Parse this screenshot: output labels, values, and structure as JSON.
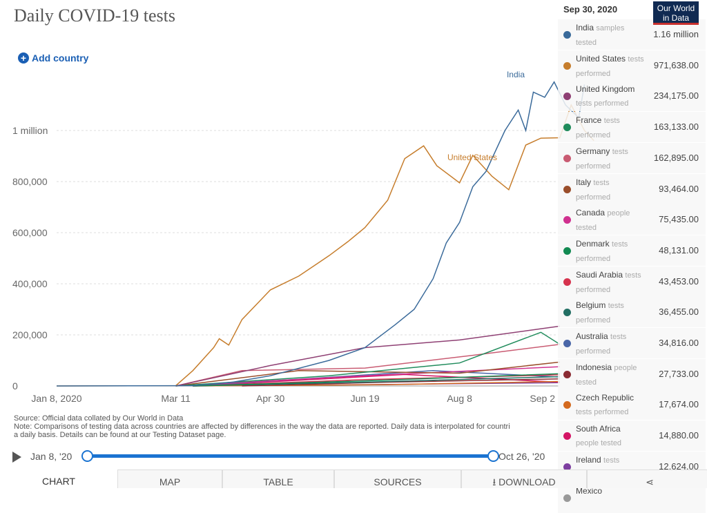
{
  "title": "Daily COVID-19 tests",
  "add_country": "Add country",
  "chart_data": {
    "type": "line",
    "title": "Daily COVID-19 tests",
    "x_ticks": [
      "Jan 8, 2020",
      "Mar 11",
      "Apr 30",
      "Jun 19",
      "Aug 8",
      "Sep 2"
    ],
    "y_ticks": [
      "0",
      "200,000",
      "400,000",
      "600,000",
      "800,000",
      "1 million"
    ],
    "ylim": [
      0,
      1200000
    ],
    "xlim": [
      "2020-01-08",
      "2020-10-26"
    ],
    "grid": "horizontal dashed",
    "series": [
      {
        "name": "India",
        "unit": "samples tested",
        "color": "#3a6a9a",
        "points": [
          [
            "2020-01-08",
            0
          ],
          [
            "2020-03-20",
            1000
          ],
          [
            "2020-04-10",
            15000
          ],
          [
            "2020-04-30",
            40000
          ],
          [
            "2020-05-31",
            100000
          ],
          [
            "2020-06-19",
            150000
          ],
          [
            "2020-07-05",
            240000
          ],
          [
            "2020-07-15",
            300000
          ],
          [
            "2020-07-25",
            420000
          ],
          [
            "2020-08-01",
            560000
          ],
          [
            "2020-08-08",
            640000
          ],
          [
            "2020-08-15",
            780000
          ],
          [
            "2020-08-22",
            840000
          ],
          [
            "2020-09-01",
            1000000
          ],
          [
            "2020-09-08",
            1080000
          ],
          [
            "2020-09-12",
            1000000
          ],
          [
            "2020-09-16",
            1150000
          ],
          [
            "2020-09-22",
            1130000
          ],
          [
            "2020-09-27",
            1190000
          ],
          [
            "2020-10-03",
            1100000
          ],
          [
            "2020-10-10",
            1050000
          ],
          [
            "2020-10-13",
            1180000
          ]
        ]
      },
      {
        "name": "United States",
        "unit": "tests performed",
        "color": "#c67d2c",
        "points": [
          [
            "2020-01-08",
            0
          ],
          [
            "2020-03-11",
            1000
          ],
          [
            "2020-03-20",
            60000
          ],
          [
            "2020-03-31",
            150000
          ],
          [
            "2020-04-03",
            185000
          ],
          [
            "2020-04-08",
            160000
          ],
          [
            "2020-04-15",
            260000
          ],
          [
            "2020-04-30",
            376000
          ],
          [
            "2020-05-15",
            430000
          ],
          [
            "2020-05-31",
            510000
          ],
          [
            "2020-06-10",
            565000
          ],
          [
            "2020-06-19",
            620000
          ],
          [
            "2020-07-01",
            727000
          ],
          [
            "2020-07-10",
            890000
          ],
          [
            "2020-07-20",
            940000
          ],
          [
            "2020-07-27",
            862000
          ],
          [
            "2020-08-08",
            795000
          ],
          [
            "2020-08-15",
            903000
          ],
          [
            "2020-08-25",
            822000
          ],
          [
            "2020-09-03",
            768000
          ],
          [
            "2020-09-12",
            943000
          ],
          [
            "2020-09-20",
            970000
          ],
          [
            "2020-09-30",
            971638
          ],
          [
            "2020-10-06",
            1100000
          ],
          [
            "2020-10-13",
            1000000
          ],
          [
            "2020-10-18",
            960000
          ]
        ]
      },
      {
        "name": "United Kingdom",
        "unit": "tests performed",
        "color": "#8e3f73",
        "points": [
          [
            "2020-03-11",
            0
          ],
          [
            "2020-04-30",
            80000
          ],
          [
            "2020-06-19",
            150000
          ],
          [
            "2020-08-08",
            180000
          ],
          [
            "2020-09-30",
            234175
          ]
        ]
      },
      {
        "name": "France",
        "unit": "tests performed",
        "color": "#1f8b5b",
        "points": [
          [
            "2020-03-11",
            0
          ],
          [
            "2020-05-31",
            40000
          ],
          [
            "2020-08-08",
            90000
          ],
          [
            "2020-09-20",
            210000
          ],
          [
            "2020-09-30",
            163133
          ]
        ]
      },
      {
        "name": "Germany",
        "unit": "tests performed",
        "color": "#c95b72",
        "points": [
          [
            "2020-03-11",
            0
          ],
          [
            "2020-04-15",
            60000
          ],
          [
            "2020-06-19",
            70000
          ],
          [
            "2020-08-15",
            120000
          ],
          [
            "2020-09-30",
            162895
          ]
        ]
      },
      {
        "name": "Italy",
        "unit": "tests performed",
        "color": "#9a4e2b",
        "points": [
          [
            "2020-03-11",
            0
          ],
          [
            "2020-05-15",
            60000
          ],
          [
            "2020-08-08",
            50000
          ],
          [
            "2020-09-30",
            93464
          ]
        ]
      },
      {
        "name": "Canada",
        "unit": "people tested",
        "color": "#d0308f",
        "points": [
          [
            "2020-03-11",
            0
          ],
          [
            "2020-06-19",
            40000
          ],
          [
            "2020-09-30",
            75435
          ]
        ]
      },
      {
        "name": "Denmark",
        "unit": "tests performed",
        "color": "#128a52",
        "points": [
          [
            "2020-03-20",
            0
          ],
          [
            "2020-06-19",
            20000
          ],
          [
            "2020-09-30",
            48131
          ]
        ]
      },
      {
        "name": "Saudi Arabia",
        "unit": "tests performed",
        "color": "#d6334e",
        "points": [
          [
            "2020-03-20",
            0
          ],
          [
            "2020-06-19",
            25000
          ],
          [
            "2020-09-30",
            43453
          ]
        ]
      },
      {
        "name": "Belgium",
        "unit": "tests performed",
        "color": "#236f64",
        "points": [
          [
            "2020-03-20",
            0
          ],
          [
            "2020-06-19",
            15000
          ],
          [
            "2020-09-30",
            36455
          ]
        ]
      },
      {
        "name": "Australia",
        "unit": "tests performed",
        "color": "#4a67a8",
        "points": [
          [
            "2020-03-20",
            0
          ],
          [
            "2020-07-25",
            60000
          ],
          [
            "2020-09-30",
            34816
          ]
        ]
      },
      {
        "name": "Indonesia",
        "unit": "people tested",
        "color": "#8b2c34",
        "points": [
          [
            "2020-04-15",
            0
          ],
          [
            "2020-07-01",
            15000
          ],
          [
            "2020-09-30",
            27733
          ]
        ]
      },
      {
        "name": "Czech Republic",
        "unit": "tests performed",
        "color": "#d46a1f",
        "points": [
          [
            "2020-03-20",
            0
          ],
          [
            "2020-07-01",
            5000
          ],
          [
            "2020-09-30",
            17674
          ]
        ]
      },
      {
        "name": "South Africa",
        "unit": "people tested",
        "color": "#d41565",
        "points": [
          [
            "2020-03-20",
            0
          ],
          [
            "2020-07-10",
            45000
          ],
          [
            "2020-09-30",
            14880
          ]
        ]
      },
      {
        "name": "Ireland",
        "unit": "tests performed",
        "color": "#7d3fa0",
        "points": [
          [
            "2020-03-20",
            0
          ],
          [
            "2020-06-19",
            5000
          ],
          [
            "2020-09-30",
            12624
          ]
        ]
      }
    ],
    "annotations": [
      {
        "text": "India",
        "sub": "samples tested"
      },
      {
        "text": "United States",
        "sub": "tests performed"
      }
    ]
  },
  "legend": {
    "date": "Sep 30, 2020",
    "items": [
      {
        "name": "India",
        "unit": "samples tested",
        "value": "1.16 million"
      },
      {
        "name": "United States",
        "unit": "tests performed",
        "value": "971,638.00"
      },
      {
        "name": "United Kingdom",
        "unit": "tests performed",
        "value": "234,175.00"
      },
      {
        "name": "France",
        "unit": "tests performed",
        "value": "163,133.00"
      },
      {
        "name": "Germany",
        "unit": "tests performed",
        "value": "162,895.00"
      },
      {
        "name": "Italy",
        "unit": "tests performed",
        "value": "93,464.00"
      },
      {
        "name": "Canada",
        "unit": "people tested",
        "value": "75,435.00"
      },
      {
        "name": "Denmark",
        "unit": "tests performed",
        "value": "48,131.00"
      },
      {
        "name": "Saudi Arabia",
        "unit": "tests performed",
        "value": "43,453.00"
      },
      {
        "name": "Belgium",
        "unit": "tests performed",
        "value": "36,455.00"
      },
      {
        "name": "Australia",
        "unit": "tests performed",
        "value": "34,816.00"
      },
      {
        "name": "Indonesia",
        "unit": "people tested",
        "value": "27,733.00"
      },
      {
        "name": "Czech Republic",
        "unit": "tests performed",
        "value": "17,674.00"
      },
      {
        "name": "South Africa",
        "unit": "people tested",
        "value": "14,880.00"
      },
      {
        "name": "Ireland",
        "unit": "tests performed",
        "value": "12,624.00"
      },
      {
        "name": "Mexico",
        "unit": "",
        "value": ""
      }
    ]
  },
  "logo": "Our World in Data",
  "notes": {
    "source": "Source: Official data collated by Our World in Data",
    "note": "Note: Comparisons of testing data across countries are affected by differences in the way the data are reported. Daily data is interpolated for countri",
    "note2": "a daily basis. Details can be found at our Testing Dataset page."
  },
  "timeline": {
    "start": "Jan 8, '20",
    "end": "Oct 26, '20"
  },
  "tabs": [
    "Chart",
    "Map",
    "Table",
    "Sources",
    "Download"
  ]
}
